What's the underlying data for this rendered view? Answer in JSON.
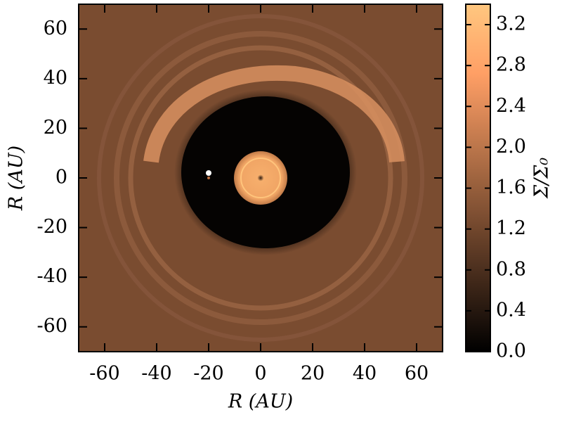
{
  "chart_data": {
    "type": "heatmap",
    "xlabel": "R (AU)",
    "ylabel": "R (AU)",
    "xlim": [
      -70,
      70
    ],
    "ylim": [
      -70,
      70
    ],
    "xticks": [
      -60,
      -40,
      -20,
      0,
      20,
      40,
      60
    ],
    "yticks": [
      -60,
      -40,
      -20,
      0,
      20,
      40,
      60
    ],
    "colormap": "copper",
    "colorbar_label": "Σ/Σ₀",
    "clim": [
      0,
      3.4
    ],
    "cticks": [
      {
        "value": 0,
        "label": "0.0"
      },
      0.4,
      0.8,
      1.2,
      1.6,
      {
        "value": 2,
        "label": "2.0"
      },
      2.4,
      2.8,
      3.2
    ]
  }
}
